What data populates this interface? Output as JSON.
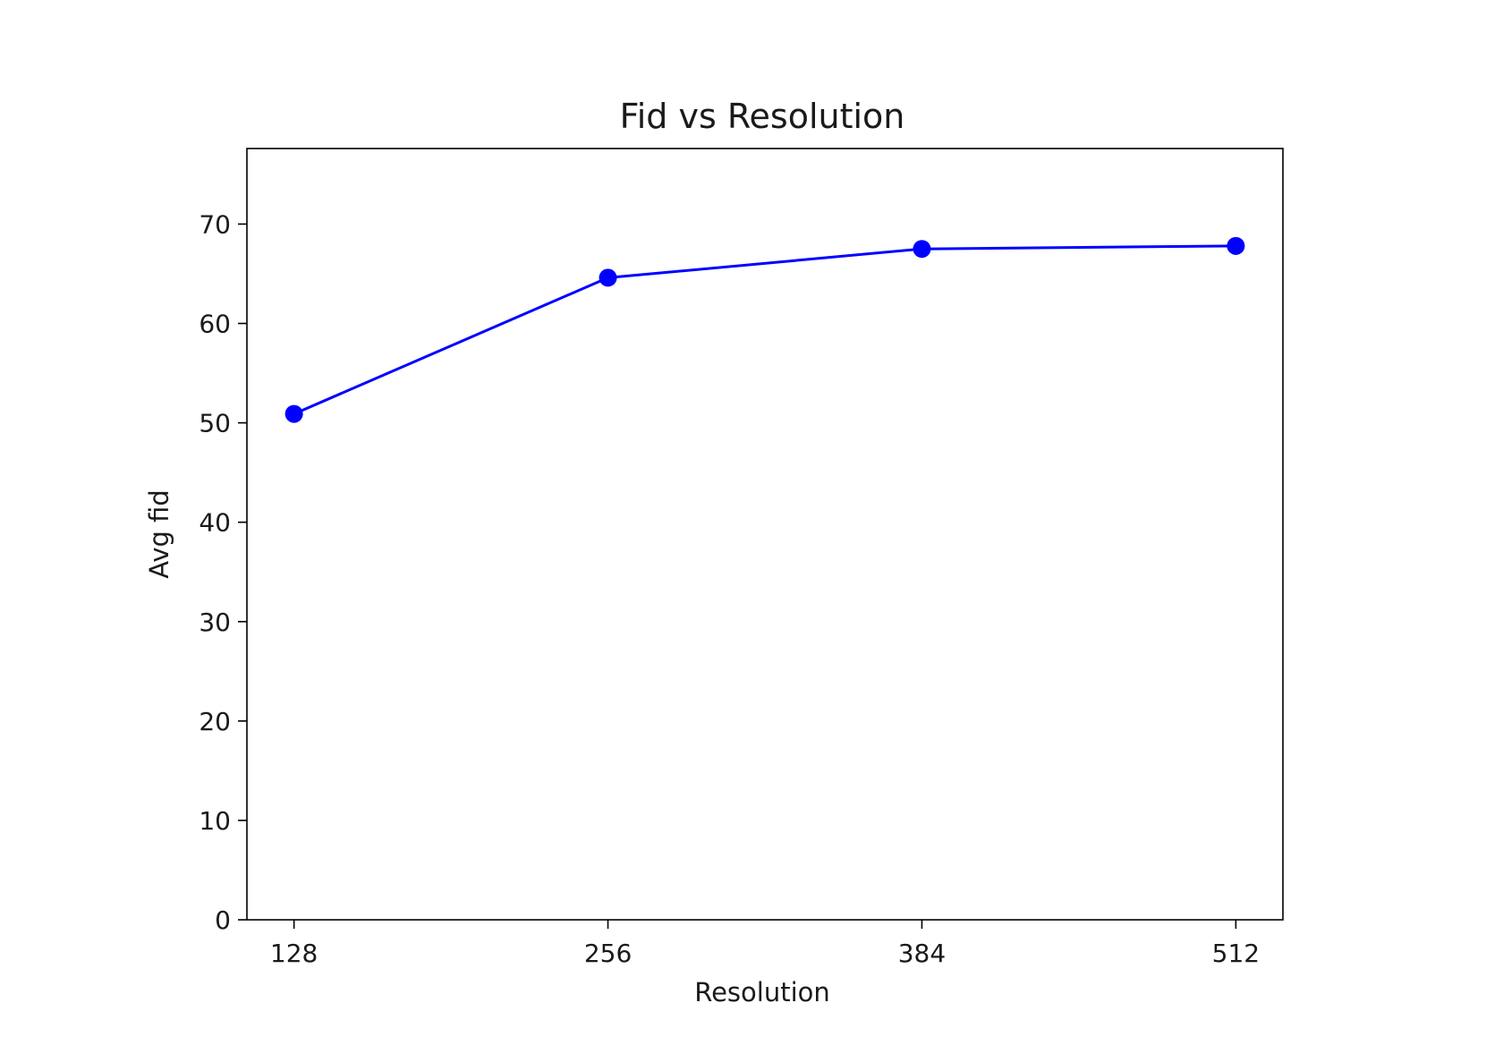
{
  "chart_data": {
    "type": "line",
    "title": "Fid vs Resolution",
    "xlabel": "Resolution",
    "ylabel": "Avg fid",
    "x": [
      128,
      256,
      384,
      512
    ],
    "series": [
      {
        "values": [
          50.9,
          64.6,
          67.5,
          67.8
        ],
        "color": "#0000ff",
        "marker": "circle"
      }
    ],
    "x_ticks": [
      "128",
      "256",
      "384",
      "512"
    ],
    "y_ticks": [
      "0",
      "10",
      "20",
      "30",
      "40",
      "50",
      "60",
      "70"
    ],
    "xlim": [
      108.8,
      531.2
    ],
    "ylim": [
      0,
      77.6
    ],
    "grid": false,
    "legend": "none"
  }
}
